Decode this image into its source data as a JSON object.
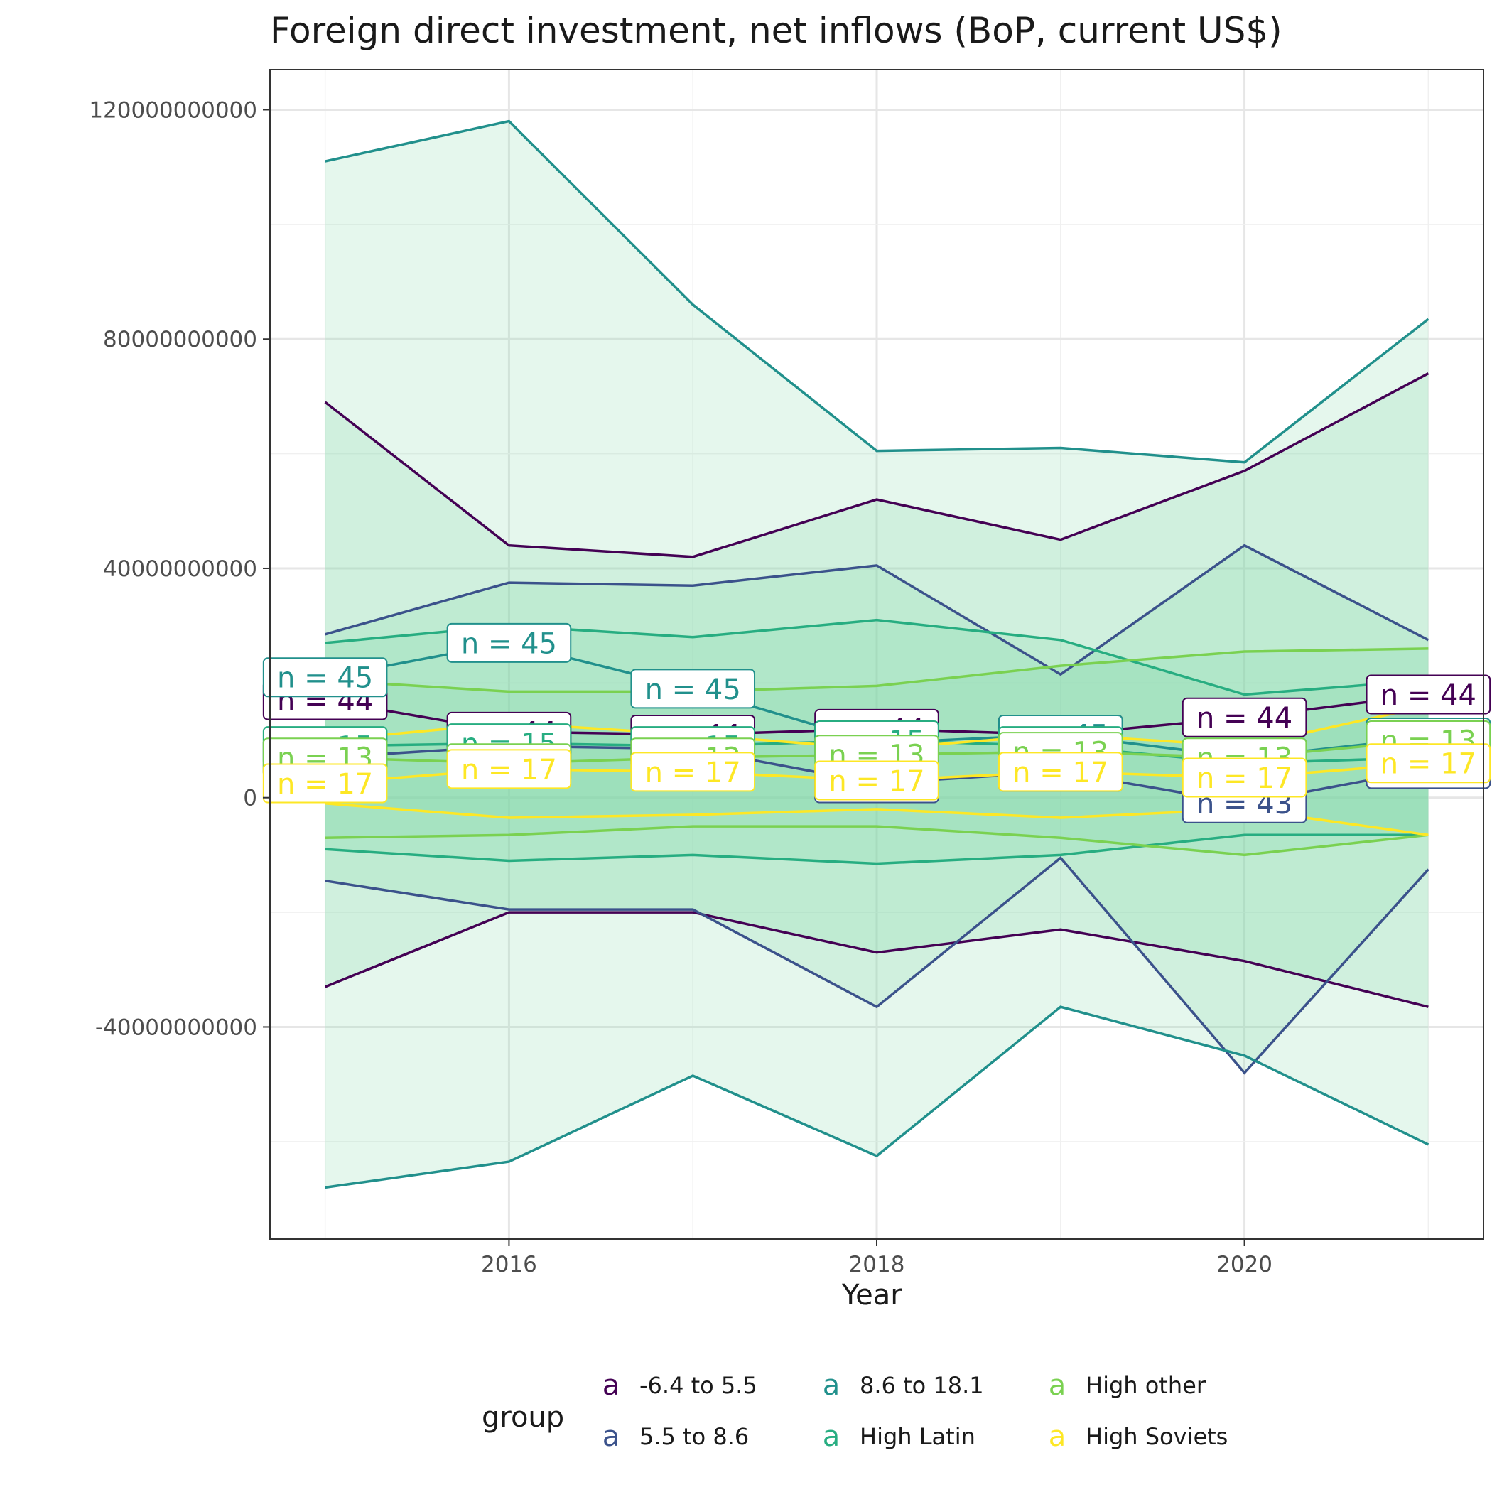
{
  "chart_data": {
    "type": "line",
    "title": "Foreign direct investment, net inflows (BoP, current US$)",
    "xlabel": "Year",
    "ylabel": "",
    "x": [
      2015,
      2016,
      2017,
      2018,
      2019,
      2020,
      2021
    ],
    "x_ticks": [
      "2016",
      "2018",
      "2020"
    ],
    "y_ticks": [
      "120000000000",
      "80000000000",
      "40000000000",
      "0",
      "-40000000000"
    ],
    "xlim": [
      2014.7,
      2021.3
    ],
    "ylim": [
      -77000000000,
      127000000000
    ],
    "grid": true,
    "legend_position": "bottom",
    "legend_title": "group",
    "legend_symbol": "a",
    "series": [
      {
        "name": "-6.4 to 5.5",
        "color": "#440154",
        "n_label": "n = 44",
        "mean": [
          17000000000,
          11500000000,
          11000000000,
          12000000000,
          11000000000,
          14000000000,
          18000000000
        ],
        "upper": [
          69000000000,
          44000000000,
          42000000000,
          52000000000,
          45000000000,
          57000000000,
          74000000000
        ],
        "lower": [
          -33000000000,
          -20000000000,
          -20000000000,
          -27000000000,
          -23000000000,
          -28500000000,
          -36500000000
        ]
      },
      {
        "name": "5.5 to 8.6",
        "color": "#3B528B",
        "n_label": "n = 43",
        "mean": [
          7000000000,
          9000000000,
          8500000000,
          2500000000,
          4500000000,
          -1000000000,
          5000000000
        ],
        "upper": [
          28500000000,
          37500000000,
          37000000000,
          40500000000,
          21500000000,
          44000000000,
          27500000000
        ],
        "lower": [
          -14500000000,
          -19500000000,
          -19500000000,
          -36500000000,
          -10500000000,
          -48000000000,
          -12500000000
        ]
      },
      {
        "name": "8.6 to 18.1",
        "color": "#21908C",
        "n_label": "n = 45",
        "mean": [
          21000000000,
          27000000000,
          19000000000,
          9500000000,
          11000000000,
          7000000000,
          10500000000
        ],
        "upper": [
          111000000000,
          118000000000,
          86000000000,
          60500000000,
          61000000000,
          58500000000,
          83500000000
        ],
        "lower": [
          -68000000000,
          -63500000000,
          -48500000000,
          -62500000000,
          -36500000000,
          -45000000000,
          -60500000000
        ]
      },
      {
        "name": "High Latin",
        "color": "#27AD81",
        "n_label": "n = 15",
        "mean": [
          9000000000,
          9500000000,
          9000000000,
          10000000000,
          9000000000,
          6000000000,
          7000000000
        ],
        "upper": [
          27000000000,
          30000000000,
          28000000000,
          31000000000,
          27500000000,
          18000000000,
          20500000000
        ],
        "lower": [
          -9000000000,
          -11000000000,
          -10000000000,
          -11500000000,
          -10000000000,
          -6500000000,
          -6500000000
        ]
      },
      {
        "name": "High other",
        "color": "#7AD151",
        "n_label": "n = 13",
        "mean": [
          7000000000,
          6000000000,
          7000000000,
          7500000000,
          8000000000,
          7000000000,
          10000000000
        ],
        "upper": [
          20500000000,
          18500000000,
          18500000000,
          19500000000,
          23000000000,
          25500000000,
          26000000000
        ],
        "lower": [
          -7000000000,
          -6500000000,
          -5000000000,
          -5000000000,
          -7000000000,
          -10000000000,
          -6500000000
        ]
      },
      {
        "name": "High Soviets",
        "color": "#FDE725",
        "n_label": "n = 17",
        "mean": [
          2500000000,
          5000000000,
          4500000000,
          3000000000,
          4500000000,
          3500000000,
          6000000000
        ],
        "upper": [
          10000000000,
          13000000000,
          11000000000,
          8500000000,
          11000000000,
          9000000000,
          16000000000
        ],
        "lower": [
          -1000000000,
          -3500000000,
          -3000000000,
          -2000000000,
          -3500000000,
          -2000000000,
          -6500000000
        ]
      }
    ]
  }
}
